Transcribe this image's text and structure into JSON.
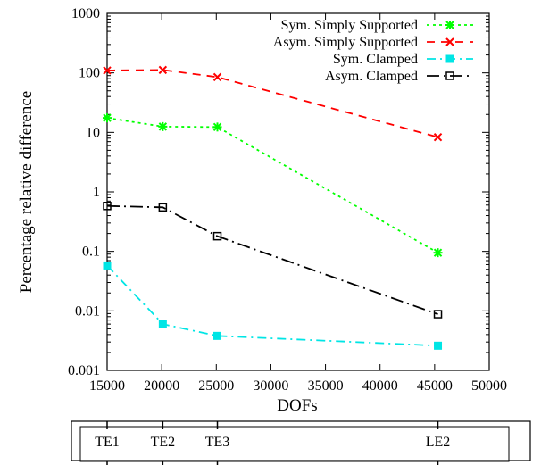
{
  "chart_data": {
    "type": "line",
    "title": "",
    "xlabel": "DOFs",
    "ylabel": "Percentage relative difference",
    "xlim": [
      15000,
      50000
    ],
    "ylim": [
      0.001,
      1000
    ],
    "yscale": "log",
    "xticks": [
      "15000",
      "20000",
      "25000",
      "30000",
      "35000",
      "40000",
      "45000",
      "50000"
    ],
    "yticks": [
      "0.001",
      "0.01",
      "0.1",
      "1",
      "10",
      "100",
      "1000"
    ],
    "grid": false,
    "legend_position": "top-right",
    "x": [
      15000,
      20100,
      25100,
      45300
    ],
    "series": [
      {
        "name": "Sym. Simply Supported",
        "color": "#00ff00",
        "dash": "dotted",
        "marker": "star",
        "values": [
          17.5,
          12.5,
          12.3,
          0.095
        ]
      },
      {
        "name": "Asym. Simply Supported",
        "color": "#ff0000",
        "dash": "dashed",
        "marker": "x",
        "values": [
          110,
          112,
          85,
          8.3
        ]
      },
      {
        "name": "Sym. Clamped",
        "color": "#00e5e5",
        "dash": "dashdot",
        "marker": "filled-square",
        "values": [
          0.058,
          0.006,
          0.0038,
          0.0026
        ]
      },
      {
        "name": "Asym. Clamped",
        "color": "#000000",
        "dash": "longdashdot",
        "marker": "open-square",
        "values": [
          0.58,
          0.55,
          0.18,
          0.0088
        ]
      }
    ],
    "mesh_labels": [
      {
        "label": "TE1",
        "x": 15000
      },
      {
        "label": "TE2",
        "x": 20100
      },
      {
        "label": "TE3",
        "x": 25100
      },
      {
        "label": "LE2",
        "x": 45300
      }
    ]
  }
}
